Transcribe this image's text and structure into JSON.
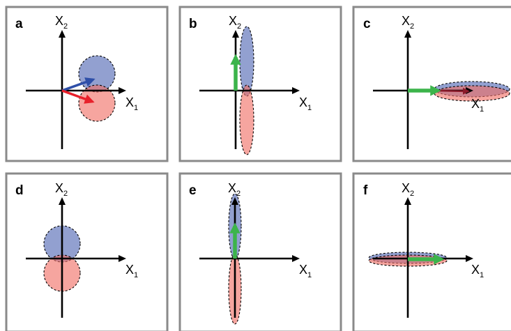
{
  "figure": {
    "panels": [
      {
        "letter": "a",
        "x_label": "X",
        "x_sub": "1",
        "y_label": "X",
        "y_sub": "2"
      },
      {
        "letter": "b",
        "x_label": "X",
        "x_sub": "1",
        "y_label": "X",
        "y_sub": "2"
      },
      {
        "letter": "c",
        "x_label": "X",
        "x_sub": "1",
        "y_label": "X",
        "y_sub": "2"
      },
      {
        "letter": "d",
        "x_label": "X",
        "x_sub": "1",
        "y_label": "X",
        "y_sub": "2"
      },
      {
        "letter": "e",
        "x_label": "X",
        "x_sub": "1",
        "y_label": "X",
        "y_sub": "2"
      },
      {
        "letter": "f",
        "x_label": "X",
        "x_sub": "1",
        "y_label": "X",
        "y_sub": "2"
      }
    ],
    "colors": {
      "blue_distribution": "#5f73b9",
      "red_distribution": "#f06e64",
      "blue_vector": "#2e4fa8",
      "red_vector": "#e8202a",
      "green_vector": "#3cb44b",
      "dark_red_vector": "#8b1a2a",
      "frame": "#8a8a8a"
    }
  }
}
